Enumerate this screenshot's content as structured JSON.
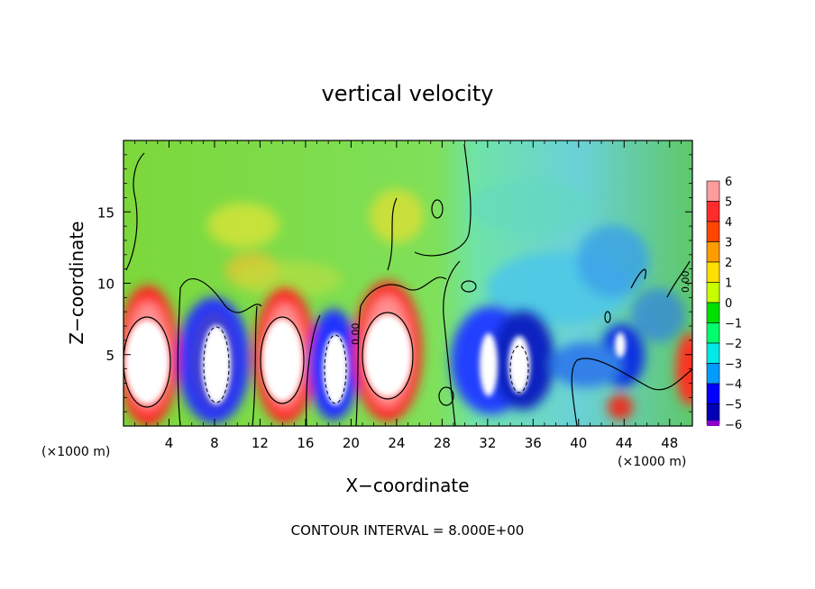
{
  "chart_data": {
    "type": "heatmap",
    "title": "vertical velocity",
    "xlabel": "X−coordinate",
    "ylabel": "Z−coordinate",
    "x_unit_left": "(×1000 m)",
    "x_unit_right": "(×1000 m)",
    "x_ticks": [
      "4",
      "8",
      "12",
      "16",
      "20",
      "24",
      "28",
      "32",
      "36",
      "40",
      "44",
      "48"
    ],
    "y_ticks": [
      "5",
      "10",
      "15"
    ],
    "xlim": [
      0,
      50
    ],
    "ylim": [
      0,
      20
    ],
    "footer": "CONTOUR INTERVAL = 8.000E+00",
    "colorbar": {
      "range": [
        -6,
        6
      ],
      "labels": [
        "6",
        "5",
        "4",
        "3",
        "2",
        "1",
        "0",
        "−1",
        "−2",
        "−3",
        "−4",
        "−5",
        "−6"
      ]
    },
    "contour_labels": [
      "0.00",
      "0.00"
    ],
    "cells": [
      {
        "x": 2.5,
        "z": 4.5,
        "sign": 1,
        "note": "updraft"
      },
      {
        "x": 8.0,
        "z": 4.0,
        "sign": -1,
        "note": "downdraft"
      },
      {
        "x": 14.0,
        "z": 4.5,
        "sign": 1,
        "note": "updraft"
      },
      {
        "x": 18.5,
        "z": 4.0,
        "sign": -1,
        "note": "downdraft"
      },
      {
        "x": 24.0,
        "z": 4.8,
        "sign": 1,
        "note": "updraft"
      },
      {
        "x": 31.5,
        "z": 4.0,
        "sign": -1,
        "note": "downdraft"
      },
      {
        "x": 34.5,
        "z": 3.8,
        "sign": -1,
        "note": "downdraft"
      }
    ]
  }
}
